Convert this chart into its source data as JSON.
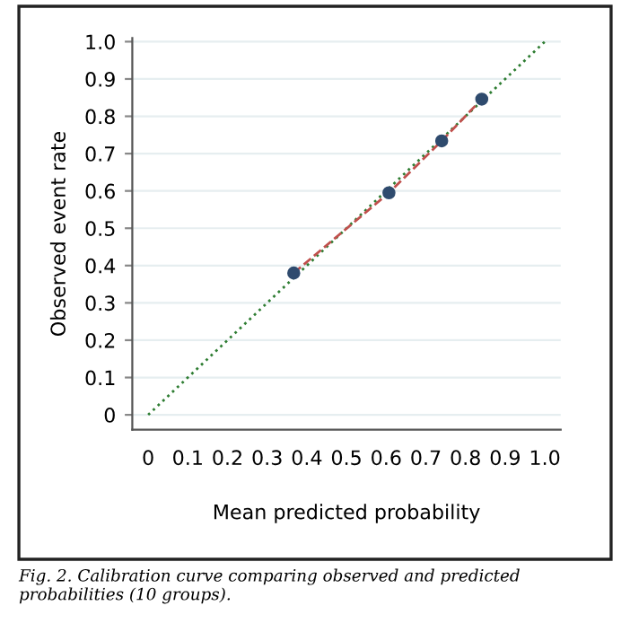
{
  "chart_data": {
    "type": "scatter",
    "xlabel": "Mean predicted probability",
    "ylabel": "Observed event rate",
    "series": [
      {
        "type": "line",
        "color": "#2e7d32",
        "line_style": "dotted",
        "marker": "none",
        "x": [
          0,
          1
        ],
        "values": [
          0,
          1
        ]
      },
      {
        "type": "line",
        "color": "#c0504d",
        "line_style": "dashed",
        "marker": "none",
        "x": [
          0.367,
          0.607,
          0.74,
          0.841
        ],
        "values": [
          0.38,
          0.595,
          0.734,
          0.846
        ]
      },
      {
        "color": "#2f4b6e",
        "marker": "circle",
        "x": [
          0.367,
          0.607,
          0.74,
          0.841
        ],
        "values": [
          0.38,
          0.595,
          0.734,
          0.846
        ]
      }
    ],
    "xlim": [
      -0.04,
      1.04
    ],
    "ylim": [
      -0.04,
      1.01
    ],
    "xticks": [
      0,
      0.1,
      0.2,
      0.3,
      0.4,
      0.5,
      0.6,
      0.7,
      0.8,
      0.9,
      {
        "value": 1,
        "label": "1.0"
      }
    ],
    "yticks": [
      0,
      0.1,
      0.2,
      0.3,
      0.4,
      0.5,
      0.6,
      0.7,
      0.8,
      0.9,
      {
        "value": 1,
        "label": "1.0"
      }
    ],
    "grid": "y",
    "annotations": [
      "Fig. 2. Calibration curve comparing observed and predicted probabilities (10 groups)."
    ]
  }
}
